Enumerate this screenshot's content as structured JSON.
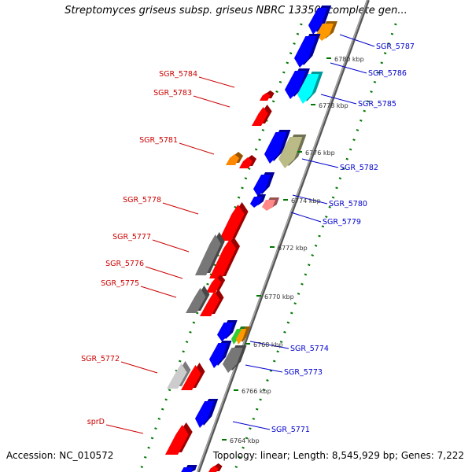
{
  "title": "Streptomyces griseus subsp. griseus NBRC 13350, complete gen...",
  "footer": {
    "accession": "Accession: NC_010572",
    "summary": "Topology: linear; Length: 8,545,929 bp; Genes: 7,222"
  },
  "colors": {
    "forward": "#ff0000",
    "reverse": "#0000ff",
    "backbone": "#888888",
    "grid": "#007700",
    "label_forward": "#cc0000",
    "label_reverse": "#0000cc"
  },
  "scale_labels": [
    "6780 kbp",
    "6778 kbp",
    "6776 kbp",
    "6774 kbp",
    "6772 kbp",
    "6770 kbp",
    "6768 kbp",
    "6766 kbp",
    "6764 kbp"
  ],
  "genes_left": [
    {
      "name": "SGR_5784",
      "color": "#ff0000"
    },
    {
      "name": "SGR_5783",
      "color": "#ff0000"
    },
    {
      "name": "SGR_5781",
      "color": "#ff8800"
    },
    {
      "name": "SGR_5778",
      "color": "#ff0000"
    },
    {
      "name": "SGR_5777",
      "color": "#777777"
    },
    {
      "name": "SGR_5776",
      "color": "#ff0000"
    },
    {
      "name": "SGR_5775",
      "color": "#777777"
    },
    {
      "name": "SGR_5772",
      "color": "#cccccc"
    },
    {
      "name": "sprD",
      "color": "#ff0000"
    }
  ],
  "genes_right": [
    {
      "name": "SGR_5787",
      "color": "#ff9900"
    },
    {
      "name": "SGR_5786",
      "color": "#0000ff"
    },
    {
      "name": "SGR_5785",
      "color": "#00ffff"
    },
    {
      "name": "SGR_5782",
      "color": "#bbbb88"
    },
    {
      "name": "SGR_5780",
      "color": "#0000ff"
    },
    {
      "name": "SGR_5779",
      "color": "#ff8888"
    },
    {
      "name": "SGR_5774",
      "color": "#ff9900"
    },
    {
      "name": "SGR_5773",
      "color": "#777777"
    },
    {
      "name": "SGR_5771",
      "color": "#0000ff"
    }
  ],
  "unlabeled_genes": [
    {
      "color": "#0000ff"
    },
    {
      "color": "#0000ff"
    },
    {
      "color": "#0000ff"
    },
    {
      "color": "#0000ff"
    },
    {
      "color": "#0000ff"
    },
    {
      "color": "#ff0000"
    },
    {
      "color": "#ff0000"
    },
    {
      "color": "#ff0000"
    },
    {
      "color": "#ff0000"
    },
    {
      "color": "#33cc33"
    },
    {
      "color": "#0000ff"
    },
    {
      "color": "#0000ff"
    },
    {
      "color": "#ff0000"
    }
  ]
}
